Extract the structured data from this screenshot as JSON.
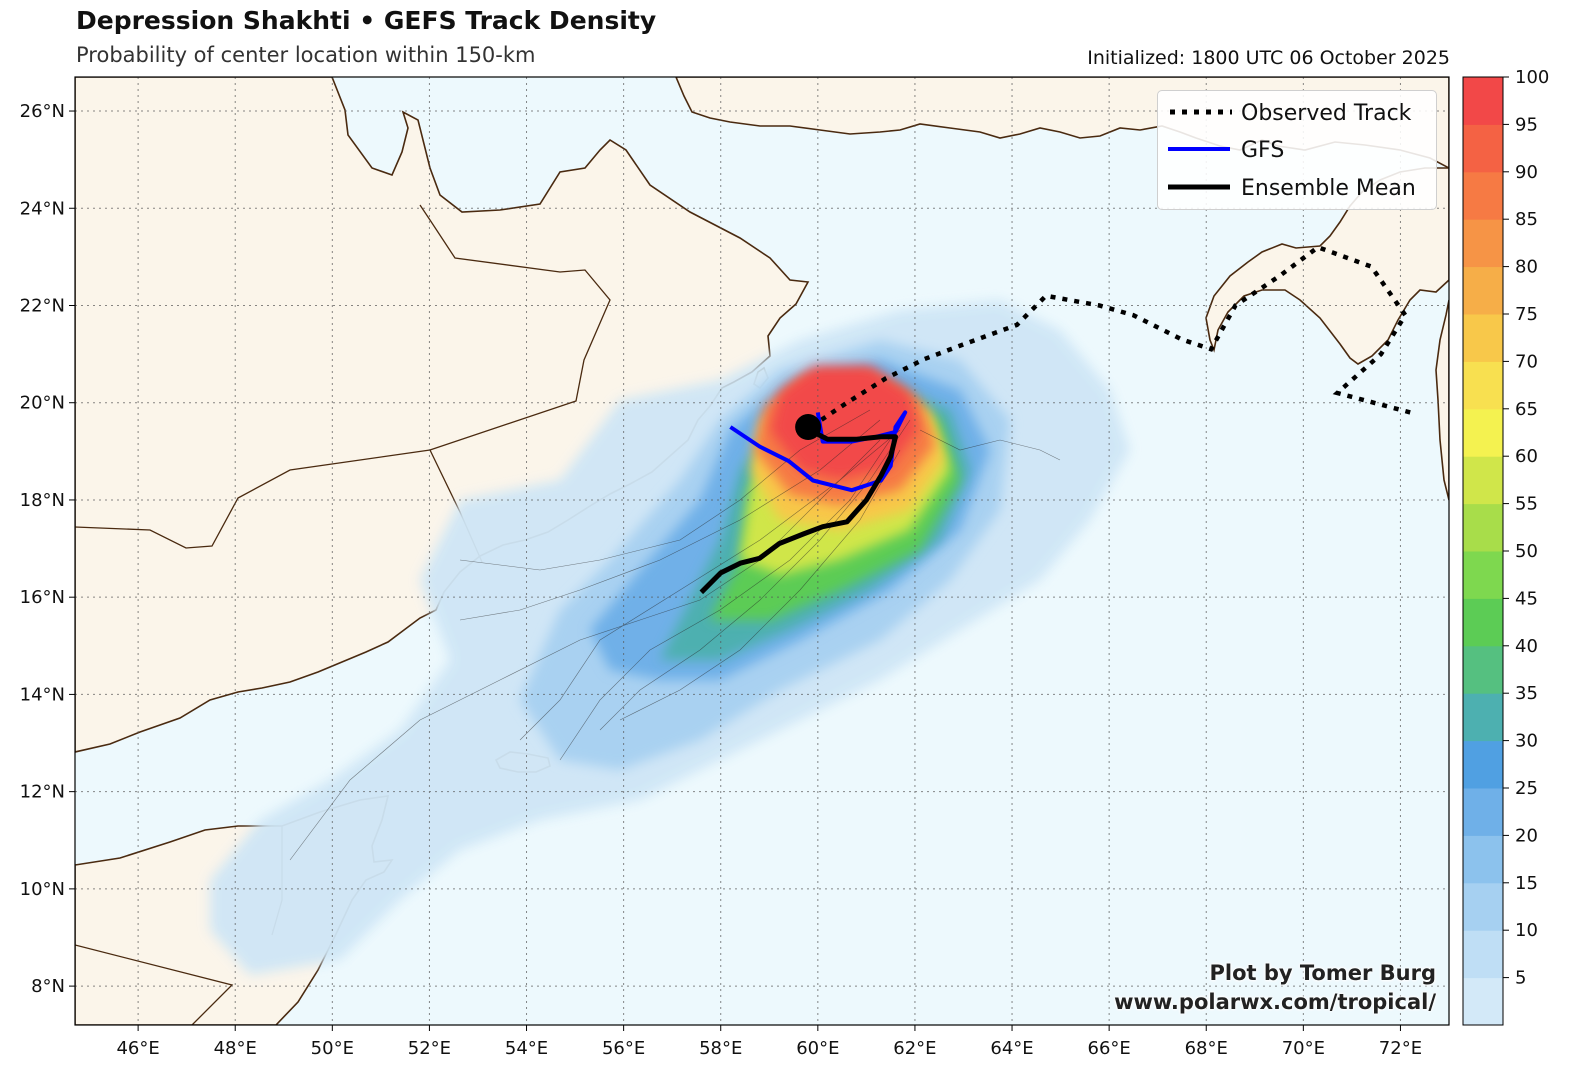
{
  "title": "Depression Shakhti • GEFS Track Density",
  "subtitle": "Probability of center location within 150-km",
  "initialized": "Initialized: 1800 UTC 06 October 2025",
  "credit_line1": "Plot by Tomer Burg",
  "credit_line2": "www.polarwx.com/tropical/",
  "legend": [
    {
      "label": "Observed Track",
      "style": "dotted",
      "color": "#000000"
    },
    {
      "label": "GFS",
      "style": "solid",
      "color": "#0000ff"
    },
    {
      "label": "Ensemble Mean",
      "style": "solid",
      "color": "#000000"
    }
  ],
  "map": {
    "lon_range": [
      44.7,
      73.0
    ],
    "lat_range": [
      7.2,
      26.7
    ],
    "lon_ticks": [
      "46°E",
      "48°E",
      "50°E",
      "52°E",
      "54°E",
      "56°E",
      "58°E",
      "60°E",
      "62°E",
      "64°E",
      "66°E",
      "68°E",
      "70°E",
      "72°E"
    ],
    "lat_ticks": [
      "8°N",
      "10°N",
      "12°N",
      "14°N",
      "16°N",
      "18°N",
      "20°N",
      "22°N",
      "24°N",
      "26°N"
    ],
    "land_color": "#fbf5ea",
    "ocean_color": "#edf9fd",
    "border_color": "#4a2a10",
    "grid": true
  },
  "colorbar": {
    "levels": [
      "5",
      "10",
      "15",
      "20",
      "25",
      "30",
      "35",
      "40",
      "45",
      "50",
      "55",
      "60",
      "65",
      "70",
      "75",
      "80",
      "85",
      "90",
      "95",
      "100"
    ],
    "colors": [
      "#d3e9f8",
      "#bfdef5",
      "#a6d0f1",
      "#8cc2ed",
      "#6fb0e8",
      "#50a0e2",
      "#4db0b0",
      "#55c080",
      "#5ccc55",
      "#7ed84f",
      "#a8dd4a",
      "#d0e64a",
      "#f4f250",
      "#f8e050",
      "#f8c84a",
      "#f6ae48",
      "#f69446",
      "#f67a44",
      "#f46244",
      "#f24848"
    ]
  },
  "storm": {
    "current_position": {
      "lon": 59.8,
      "lat": 19.5
    },
    "observed_track": [
      [
        72.2,
        19.8
      ],
      [
        70.7,
        20.2
      ],
      [
        71.6,
        21.0
      ],
      [
        72.1,
        21.8
      ],
      [
        71.4,
        22.8
      ],
      [
        70.3,
        23.2
      ],
      [
        69.5,
        22.6
      ],
      [
        68.6,
        22.0
      ],
      [
        68.1,
        21.1
      ],
      [
        67.5,
        21.3
      ],
      [
        66.5,
        21.8
      ],
      [
        65.8,
        22.0
      ],
      [
        64.7,
        22.2
      ],
      [
        64.1,
        21.6
      ],
      [
        63.0,
        21.2
      ],
      [
        62.2,
        20.9
      ],
      [
        61.4,
        20.5
      ],
      [
        60.6,
        20.0
      ],
      [
        60.0,
        19.6
      ]
    ],
    "gfs_track": [
      [
        58.2,
        19.5
      ],
      [
        58.8,
        19.1
      ],
      [
        59.4,
        18.8
      ],
      [
        59.9,
        18.4
      ],
      [
        60.7,
        18.2
      ],
      [
        61.3,
        18.4
      ],
      [
        61.5,
        18.7
      ],
      [
        61.6,
        19.5
      ],
      [
        61.8,
        19.8
      ],
      [
        61.6,
        19.4
      ],
      [
        61.2,
        19.3
      ],
      [
        60.7,
        19.2
      ],
      [
        60.1,
        19.2
      ],
      [
        60.0,
        19.8
      ]
    ],
    "ensemble_mean": [
      [
        57.6,
        16.1
      ],
      [
        58.0,
        16.5
      ],
      [
        58.4,
        16.7
      ],
      [
        58.8,
        16.8
      ],
      [
        59.2,
        17.1
      ],
      [
        59.7,
        17.3
      ],
      [
        60.1,
        17.45
      ],
      [
        60.6,
        17.55
      ],
      [
        61.0,
        18.0
      ],
      [
        61.3,
        18.5
      ],
      [
        61.5,
        18.9
      ],
      [
        61.6,
        19.3
      ],
      [
        61.3,
        19.3
      ],
      [
        60.8,
        19.25
      ],
      [
        60.2,
        19.25
      ],
      [
        59.9,
        19.4
      ]
    ]
  }
}
